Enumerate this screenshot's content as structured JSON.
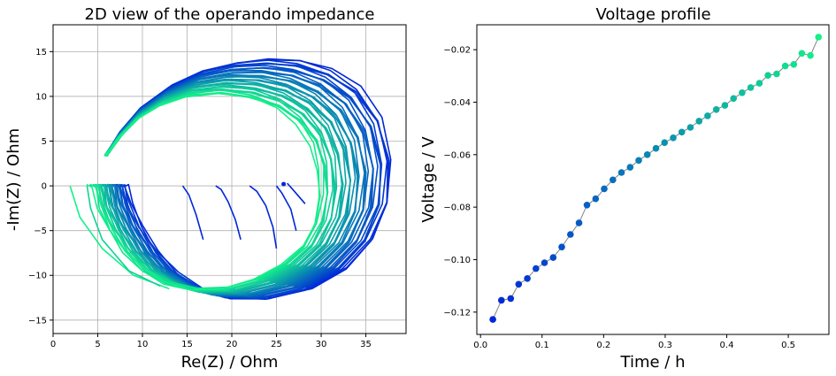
{
  "chart_data": [
    {
      "type": "line",
      "title": "2D view of the operando impedance",
      "xlabel": "Re(Z) / Ohm",
      "ylabel": "-Im(Z) / Ohm",
      "xlim": [
        0,
        39.5
      ],
      "ylim": [
        -16.5,
        18
      ],
      "xticks": [
        0,
        5,
        10,
        15,
        20,
        25,
        30,
        35
      ],
      "yticks": [
        -15,
        -10,
        -5,
        0,
        5,
        10,
        15
      ],
      "grid": true,
      "colormap": "winter",
      "color_start": "#0026d9",
      "color_end": "#14f08a",
      "num_curves": 36,
      "curve_template": {
        "hf_arc": [
          [
            6.0,
            3.5
          ],
          [
            7.5,
            5.5
          ],
          [
            9.5,
            7.5
          ],
          [
            12.0,
            9.0
          ],
          [
            15.0,
            10.0
          ],
          [
            18.5,
            10.3
          ],
          [
            22.0,
            9.8
          ],
          [
            25.0,
            8.7
          ],
          [
            27.3,
            7.0
          ],
          [
            29.0,
            4.6
          ],
          [
            29.7,
            1.8
          ],
          [
            29.8,
            -1.2
          ],
          [
            29.2,
            -4.2
          ],
          [
            27.8,
            -6.8
          ],
          [
            25.5,
            -8.8
          ],
          [
            22.5,
            -10.4
          ],
          [
            19.0,
            -11.4
          ],
          [
            15.5,
            -11.5
          ],
          [
            12.5,
            -10.8
          ],
          [
            10.0,
            -9.4
          ],
          [
            7.8,
            -7.3
          ],
          [
            6.2,
            -4.8
          ],
          [
            5.1,
            -2.4
          ],
          [
            4.6,
            0.0
          ]
        ],
        "first_curve": [
          [
            6.0,
            3.5
          ],
          [
            7.7,
            6.2
          ],
          [
            10.0,
            8.9
          ],
          [
            13.2,
            11.2
          ],
          [
            16.8,
            12.9
          ],
          [
            20.5,
            13.8
          ],
          [
            24.0,
            14.2
          ],
          [
            27.5,
            14.0
          ],
          [
            31.0,
            13.0
          ],
          [
            34.2,
            11.0
          ],
          [
            36.7,
            7.6
          ],
          [
            37.9,
            3.0
          ],
          [
            37.6,
            -1.8
          ],
          [
            35.8,
            -6.0
          ],
          [
            32.8,
            -9.3
          ],
          [
            28.8,
            -11.6
          ],
          [
            24.3,
            -12.6
          ],
          [
            20.2,
            -12.5
          ],
          [
            16.8,
            -11.6
          ],
          [
            14.0,
            -9.8
          ],
          [
            11.7,
            -7.4
          ],
          [
            9.9,
            -4.6
          ],
          [
            8.7,
            -2.0
          ],
          [
            8.2,
            0.0
          ]
        ]
      },
      "inner_tails": [
        {
          "points": [
            [
              18.2,
              0.0
            ],
            [
              18.8,
              -0.4
            ],
            [
              19.6,
              -1.8
            ],
            [
              20.4,
              -3.8
            ],
            [
              21.0,
              -6.0
            ]
          ]
        },
        {
          "points": [
            [
              22.0,
              0.0
            ],
            [
              22.8,
              -0.6
            ],
            [
              23.8,
              -2.2
            ],
            [
              24.6,
              -4.6
            ],
            [
              25.0,
              -7.0
            ]
          ]
        },
        {
          "points": [
            [
              25.0,
              0.0
            ],
            [
              25.6,
              -0.8
            ],
            [
              26.6,
              -2.6
            ],
            [
              27.2,
              -5.0
            ]
          ]
        },
        {
          "points": [
            [
              14.5,
              0.0
            ],
            [
              15.2,
              -1.0
            ],
            [
              16.0,
              -3.2
            ],
            [
              16.8,
              -6.0
            ]
          ]
        },
        {
          "points": [
            [
              26.2,
              0.3
            ],
            [
              27.0,
              -0.6
            ],
            [
              28.2,
              -2.0
            ]
          ]
        }
      ]
    },
    {
      "type": "scatter",
      "title": "Voltage profile",
      "xlabel": "Time / h",
      "ylabel": "Voltage / V",
      "xlim": [
        -0.006,
        0.566
      ],
      "ylim": [
        -0.1285,
        -0.0105
      ],
      "xticks": [
        0.0,
        0.1,
        0.2,
        0.3,
        0.4,
        0.5
      ],
      "yticks": [
        -0.12,
        -0.1,
        -0.08,
        -0.06,
        -0.04,
        -0.02
      ],
      "x_tick_labels": [
        "0.0",
        "0.1",
        "0.2",
        "0.3",
        "0.4",
        "0.5"
      ],
      "y_tick_labels": [
        "−0.12",
        "−0.10",
        "−0.08",
        "−0.06",
        "−0.04",
        "−0.02"
      ],
      "line_color": "#808080",
      "colormap": "winter",
      "color_start": "#0026d9",
      "color_end": "#14f08a",
      "x": [
        0.02,
        0.034,
        0.049,
        0.062,
        0.076,
        0.09,
        0.104,
        0.118,
        0.132,
        0.146,
        0.16,
        0.173,
        0.187,
        0.201,
        0.215,
        0.229,
        0.243,
        0.257,
        0.271,
        0.285,
        0.299,
        0.313,
        0.327,
        0.341,
        0.355,
        0.369,
        0.383,
        0.397,
        0.411,
        0.425,
        0.439,
        0.453,
        0.467,
        0.481,
        0.495,
        0.509,
        0.522,
        0.536,
        0.549
      ],
      "y": [
        -0.1228,
        -0.1155,
        -0.1148,
        -0.1094,
        -0.1072,
        -0.1034,
        -0.1012,
        -0.0992,
        -0.0952,
        -0.0904,
        -0.086,
        -0.0792,
        -0.0768,
        -0.073,
        -0.0696,
        -0.0668,
        -0.0648,
        -0.0622,
        -0.06,
        -0.0576,
        -0.0554,
        -0.0536,
        -0.0514,
        -0.0496,
        -0.0472,
        -0.0452,
        -0.0428,
        -0.0412,
        -0.0386,
        -0.0364,
        -0.0344,
        -0.0328,
        -0.0298,
        -0.0292,
        -0.0262,
        -0.0256,
        -0.0214,
        -0.0222,
        -0.0152
      ]
    }
  ]
}
